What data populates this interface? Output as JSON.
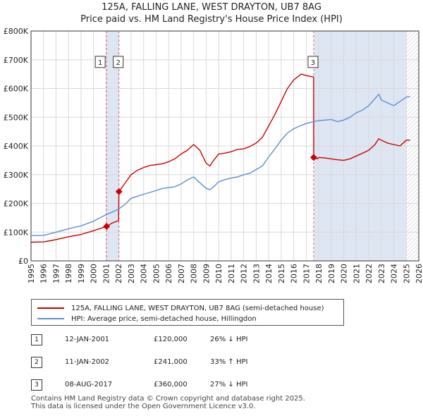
{
  "chart_data": {
    "type": "line",
    "title": "125A, FALLING LANE, WEST DRAYTON, UB7 8AG",
    "subtitle": "Price paid vs. HM Land Registry's House Price Index (HPI)",
    "xlabel": "",
    "ylabel": "",
    "xlim": [
      1995,
      2026
    ],
    "ylim": [
      0,
      800000
    ],
    "y_ticks": [
      0,
      100000,
      200000,
      300000,
      400000,
      500000,
      600000,
      700000,
      800000
    ],
    "y_tick_labels": [
      "£0",
      "£100K",
      "£200K",
      "£300K",
      "£400K",
      "£500K",
      "£600K",
      "£700K",
      "£800K"
    ],
    "x_ticks": [
      1995,
      1996,
      1997,
      1998,
      1999,
      2000,
      2001,
      2002,
      2003,
      2004,
      2005,
      2006,
      2007,
      2008,
      2009,
      2010,
      2011,
      2012,
      2013,
      2014,
      2015,
      2016,
      2017,
      2018,
      2019,
      2020,
      2021,
      2022,
      2023,
      2024,
      2025,
      2026
    ],
    "grid": true,
    "series": [
      {
        "name": "125A, FALLING LANE, WEST DRAYTON, UB7 8AG (semi-detached house)",
        "color": "#cc0000",
        "x": [
          1995.0,
          1996.0,
          1996.5,
          1997.0,
          1998.0,
          1999.0,
          2000.0,
          2001.04,
          2001.5,
          2002.0,
          2002.03,
          2002.5,
          2003.0,
          2003.5,
          2004.0,
          2004.5,
          2005.0,
          2005.5,
          2006.0,
          2006.5,
          2007.0,
          2007.5,
          2008.0,
          2008.5,
          2009.0,
          2009.3,
          2009.6,
          2010.0,
          2010.5,
          2011.0,
          2011.5,
          2012.0,
          2012.5,
          2013.0,
          2013.5,
          2014.0,
          2014.5,
          2015.0,
          2015.5,
          2016.0,
          2016.3,
          2016.6,
          2017.0,
          2017.59,
          2017.6,
          2017.9,
          2018.0,
          2018.5,
          2019.0,
          2019.5,
          2020.0,
          2020.5,
          2021.0,
          2021.5,
          2022.0,
          2022.5,
          2022.8,
          2023.0,
          2023.5,
          2024.0,
          2024.5,
          2025.0,
          2025.3
        ],
        "values": [
          65000,
          66000,
          70000,
          74000,
          84000,
          92000,
          105000,
          120000,
          132000,
          140000,
          241000,
          270000,
          300000,
          315000,
          325000,
          332000,
          335000,
          338000,
          345000,
          355000,
          372000,
          385000,
          405000,
          385000,
          340000,
          330000,
          350000,
          372000,
          375000,
          380000,
          388000,
          390000,
          398000,
          410000,
          430000,
          470000,
          510000,
          555000,
          600000,
          630000,
          640000,
          650000,
          645000,
          640000,
          360000,
          355000,
          360000,
          358000,
          355000,
          352000,
          350000,
          355000,
          365000,
          375000,
          385000,
          405000,
          425000,
          420000,
          410000,
          405000,
          400000,
          420000,
          420000
        ]
      },
      {
        "name": "HPI: Average price, semi-detached house, Hillingdon",
        "color": "#5b8fd0",
        "x": [
          1995.0,
          1996.0,
          1996.5,
          1997.0,
          1998.0,
          1999.0,
          2000.0,
          2001.04,
          2001.5,
          2002.03,
          2002.5,
          2003.0,
          2003.5,
          2004.0,
          2004.5,
          2005.0,
          2005.5,
          2006.0,
          2006.5,
          2007.0,
          2007.5,
          2008.0,
          2008.5,
          2009.0,
          2009.3,
          2009.6,
          2010.0,
          2010.5,
          2011.0,
          2011.5,
          2012.0,
          2012.5,
          2013.0,
          2013.5,
          2014.0,
          2014.5,
          2015.0,
          2015.5,
          2016.0,
          2016.5,
          2017.0,
          2017.59,
          2018.0,
          2018.5,
          2019.0,
          2019.5,
          2020.0,
          2020.5,
          2021.0,
          2021.5,
          2022.0,
          2022.5,
          2022.8,
          2023.0,
          2023.5,
          2024.0,
          2024.5,
          2025.0,
          2025.3
        ],
        "values": [
          88000,
          89000,
          94000,
          100000,
          112000,
          122000,
          138000,
          162000,
          170000,
          181000,
          196000,
          218000,
          225000,
          232000,
          238000,
          245000,
          252000,
          255000,
          258000,
          268000,
          282000,
          292000,
          272000,
          252000,
          248000,
          258000,
          275000,
          283000,
          288000,
          292000,
          300000,
          305000,
          318000,
          330000,
          362000,
          390000,
          420000,
          445000,
          460000,
          470000,
          478000,
          485000,
          488000,
          490000,
          492000,
          485000,
          490000,
          500000,
          515000,
          525000,
          540000,
          565000,
          580000,
          560000,
          550000,
          540000,
          555000,
          570000,
          572000
        ]
      }
    ],
    "sales": [
      {
        "label": "1",
        "x": 2001.04,
        "value": 120000
      },
      {
        "label": "2",
        "x": 2002.03,
        "value": 241000
      },
      {
        "label": "3",
        "x": 2017.6,
        "value": 360000
      }
    ],
    "forecast_from": 2025.0
  },
  "legend": {
    "property_label": "125A, FALLING LANE, WEST DRAYTON, UB7 8AG (semi-detached house)",
    "hpi_label": "HPI: Average price, semi-detached house, Hillingdon"
  },
  "sales_table": [
    {
      "num": "1",
      "date": "12-JAN-2001",
      "price": "£120,000",
      "hpi": "26% ↓ HPI"
    },
    {
      "num": "2",
      "date": "11-JAN-2002",
      "price": "£241,000",
      "hpi": "33% ↑ HPI"
    },
    {
      "num": "3",
      "date": "08-AUG-2017",
      "price": "£360,000",
      "hpi": "27% ↓ HPI"
    }
  ],
  "footer": {
    "line1": "Contains HM Land Registry data © Crown copyright and database right 2025.",
    "line2": "This data is licensed under the Open Government Licence v3.0."
  },
  "colors": {
    "property": "#cc0000",
    "hpi": "#5b8fd0",
    "shade": "#dfe6f3",
    "grid": "#d8d8d8"
  }
}
